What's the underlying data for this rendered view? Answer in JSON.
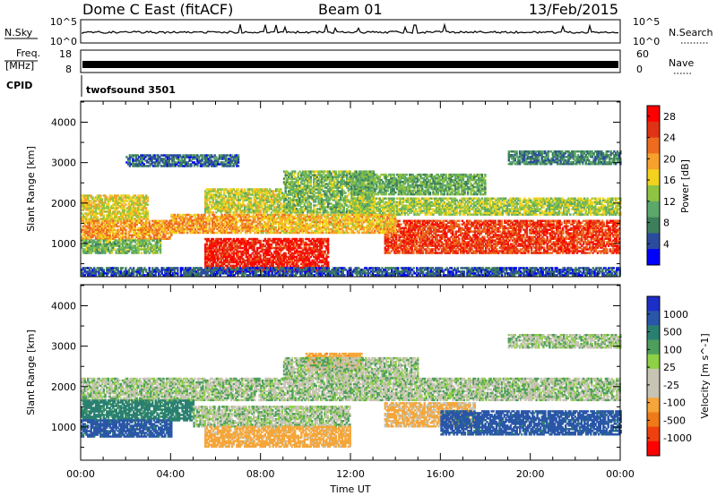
{
  "header": {
    "radar": "Dome C East (fitACF)",
    "beam": "Beam 01",
    "date": "13/Feb/2015"
  },
  "strips": {
    "nsky": {
      "label": "N.Sky",
      "left_ticks": [
        "10^5",
        "10^0"
      ],
      "right_ticks": [
        "10^5",
        "10^0"
      ],
      "right_label": "N.Search"
    },
    "freq": {
      "label_line1": "Freq.",
      "label_line2": "[MHz]",
      "left_ticks": [
        "18",
        "8"
      ],
      "right_ticks": [
        "60",
        "0"
      ],
      "right_label": "Nave"
    },
    "cpid": {
      "label": "CPID",
      "program": "twofsound 3501"
    }
  },
  "axes": {
    "xlabel": "Time UT",
    "x_ticks": [
      "00:00",
      "04:00",
      "08:00",
      "12:00",
      "16:00",
      "20:00",
      "00:00"
    ],
    "ylabel": "Slant Range [km]",
    "y_ticks": [
      "1000",
      "2000",
      "3000",
      "4000"
    ]
  },
  "colors": {
    "power": [
      "#0000ff",
      "#2b4c9e",
      "#3d7f5a",
      "#5ca86a",
      "#8ec442",
      "#f2d21c",
      "#f6a12c",
      "#ee6b1f",
      "#e03214",
      "#ff0000"
    ],
    "velocity": [
      "#ff0000",
      "#f04010",
      "#f07a18",
      "#f5a63a",
      "#c8c4b4",
      "#c8c4b4",
      "#8ed046",
      "#4e9e5c",
      "#2a8070",
      "#2a56a8",
      "#1c2ec8"
    ]
  },
  "chart_data": [
    {
      "type": "heatmap",
      "panel": "power",
      "title": "",
      "xlabel": "",
      "ylabel": "Slant Range [km]",
      "x_ticks": [
        "00:00",
        "04:00",
        "08:00",
        "12:00",
        "16:00",
        "20:00",
        "00:00"
      ],
      "xlim_hours": [
        0,
        24
      ],
      "y_ticks": [
        1000,
        2000,
        3000,
        4000
      ],
      "ylim": [
        180,
        4520
      ],
      "colorbar": {
        "label": "Power [dB]",
        "ticks": [
          4,
          8,
          12,
          16,
          20,
          24,
          28
        ],
        "range": [
          0,
          30
        ]
      },
      "regions": [
        {
          "t0": 0.0,
          "t1": 3.0,
          "r0": 1550,
          "r1": 2200,
          "value": 16
        },
        {
          "t0": 0.0,
          "t1": 4.0,
          "r0": 1100,
          "r1": 1550,
          "value": 20
        },
        {
          "t0": 0.0,
          "t1": 3.5,
          "r0": 750,
          "r1": 1100,
          "value": 12
        },
        {
          "t0": 5.5,
          "t1": 9.0,
          "r0": 1750,
          "r1": 2350,
          "value": 15
        },
        {
          "t0": 4.0,
          "t1": 8.0,
          "r0": 1250,
          "r1": 1700,
          "value": 20
        },
        {
          "t0": 5.5,
          "t1": 11.0,
          "r0": 300,
          "r1": 1100,
          "value": 27
        },
        {
          "t0": 9.0,
          "t1": 13.0,
          "r0": 1750,
          "r1": 2800,
          "value": 12
        },
        {
          "t0": 12.0,
          "t1": 24.0,
          "r0": 1700,
          "r1": 2100,
          "value": 14
        },
        {
          "t0": 12.0,
          "t1": 18.0,
          "r0": 2200,
          "r1": 2700,
          "value": 11
        },
        {
          "t0": 13.5,
          "t1": 24.0,
          "r0": 750,
          "r1": 1550,
          "value": 25
        },
        {
          "t0": 8.0,
          "t1": 14.0,
          "r0": 1250,
          "r1": 1700,
          "value": 18
        },
        {
          "t0": 2.0,
          "t1": 7.0,
          "r0": 2900,
          "r1": 3200,
          "value": 6
        },
        {
          "t0": 19.0,
          "t1": 24.0,
          "r0": 2950,
          "r1": 3300,
          "value": 8
        },
        {
          "t0": 0.0,
          "t1": 24.0,
          "r0": 200,
          "r1": 420,
          "value": 5
        }
      ]
    },
    {
      "type": "heatmap",
      "panel": "velocity",
      "title": "",
      "xlabel": "Time UT",
      "ylabel": "Slant Range [km]",
      "x_ticks": [
        "00:00",
        "04:00",
        "08:00",
        "12:00",
        "16:00",
        "20:00",
        "00:00"
      ],
      "xlim_hours": [
        0,
        24
      ],
      "y_ticks": [
        1000,
        2000,
        3000,
        4000
      ],
      "ylim": [
        180,
        4520
      ],
      "colorbar": {
        "label": "Velocity [m s^-1]",
        "ticks": [
          1000,
          500,
          100,
          25,
          -25,
          -100,
          -500,
          -1000
        ]
      },
      "regions": [
        {
          "t0": 0.0,
          "t1": 24.0,
          "r0": 1650,
          "r1": 2200,
          "value": 0
        },
        {
          "t0": 0.0,
          "t1": 5.0,
          "r0": 1150,
          "r1": 1650,
          "value": 150
        },
        {
          "t0": 0.0,
          "t1": 4.0,
          "r0": 750,
          "r1": 1150,
          "value": 300
        },
        {
          "t0": 5.0,
          "t1": 12.0,
          "r0": 1000,
          "r1": 1500,
          "value": 0
        },
        {
          "t0": 5.5,
          "t1": 12.0,
          "r0": 500,
          "r1": 1000,
          "value": -150
        },
        {
          "t0": 10.0,
          "t1": 12.5,
          "r0": 2400,
          "r1": 2800,
          "value": -200
        },
        {
          "t0": 13.5,
          "t1": 17.5,
          "r0": 1000,
          "r1": 1600,
          "value": -120
        },
        {
          "t0": 16.0,
          "t1": 24.0,
          "r0": 800,
          "r1": 1400,
          "value": 300
        },
        {
          "t0": 9.0,
          "t1": 15.0,
          "r0": 2200,
          "r1": 2700,
          "value": 0
        },
        {
          "t0": 19.0,
          "t1": 24.0,
          "r0": 2950,
          "r1": 3300,
          "value": 0
        }
      ]
    }
  ]
}
